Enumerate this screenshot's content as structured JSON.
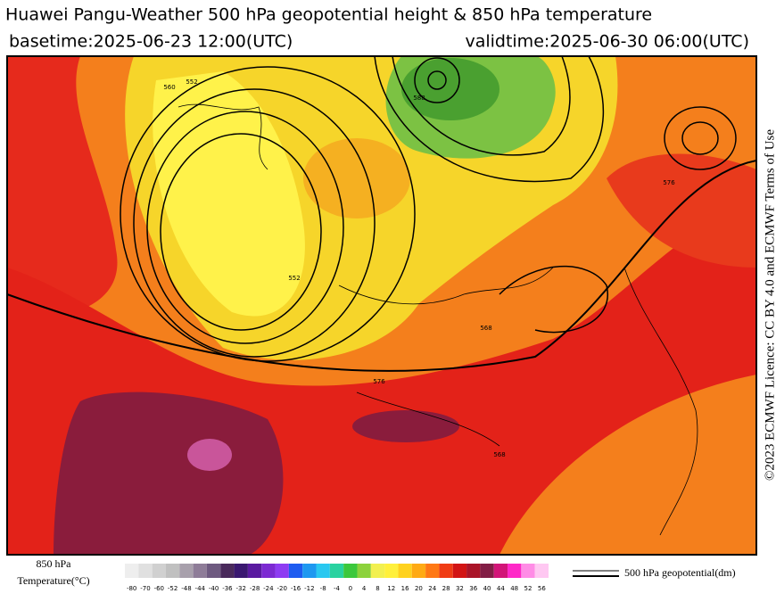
{
  "header": {
    "title": "Huawei Pangu-Weather 500 hPa geopotential height & 850 hPa temperature",
    "basetime": "basetime:2025-06-23 12:00(UTC)",
    "validtime": "validtime:2025-06-30 06:00(UTC)"
  },
  "credit": "©2023 ECMWF Licence: CC BY 4.0 and ECMWF Terms of Use",
  "colorbar": {
    "title_line1": "850 hPa",
    "title_line2": "Temperature(°C)",
    "labels": [
      -80,
      -70,
      -60,
      -52,
      -48,
      -44,
      -40,
      -36,
      -32,
      -28,
      -24,
      -20,
      -16,
      -12,
      -8,
      -4,
      0,
      4,
      8,
      12,
      16,
      20,
      24,
      28,
      32,
      36,
      40,
      44,
      48,
      52,
      56
    ],
    "colors": [
      "#eeeeee",
      "#e0e0e0",
      "#d0d0d0",
      "#c0c0c0",
      "#a8a0ac",
      "#8e7c98",
      "#6e5a80",
      "#4a2a5c",
      "#3a1870",
      "#5a1aa0",
      "#7c2ad2",
      "#8e3cf2",
      "#1e5cf0",
      "#1e98f0",
      "#2ac8f0",
      "#2ad2a0",
      "#3cc83c",
      "#8cd23c",
      "#f2f050",
      "#fff03c",
      "#ffd21e",
      "#ffaa14",
      "#ff7814",
      "#f03c14",
      "#d21414",
      "#aa1428",
      "#821e46",
      "#d21478",
      "#ff28c8",
      "#ff8ce6",
      "#ffc8f2"
    ]
  },
  "legend": {
    "label": "500 hPa geopotential(dm)"
  },
  "contour_labels": [
    "552",
    "560",
    "576",
    "588",
    "568",
    "576",
    "552",
    "568"
  ]
}
